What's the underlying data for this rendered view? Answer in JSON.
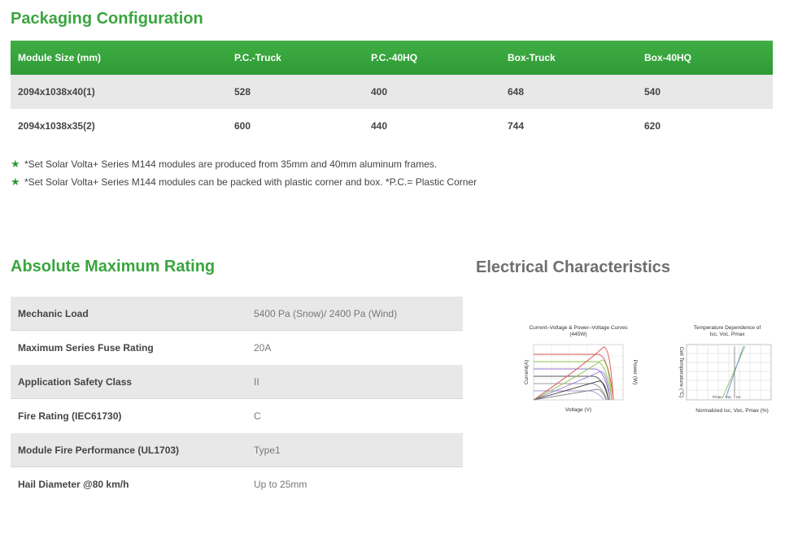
{
  "packaging": {
    "title": "Packaging Configuration",
    "headers": [
      "Module Size (mm)",
      "P.C.-Truck",
      "P.C.-40HQ",
      "Box-Truck",
      "Box-40HQ"
    ],
    "rows": [
      [
        "2094x1038x40(1)",
        "528",
        "400",
        "648",
        "540"
      ],
      [
        "2094x1038x35(2)",
        "600",
        "440",
        "744",
        "620"
      ]
    ],
    "notes": [
      "*Set Solar Volta+ Series M144 modules are produced from 35mm and 40mm aluminum frames.",
      "*Set Solar Volta+ Series M144 modules can be packed with plastic corner and box. *P.C.= Plastic Corner"
    ]
  },
  "rating": {
    "title": "Absolute Maximum Rating",
    "rows": [
      {
        "label": "Mechanic Load",
        "value": "5400 Pa (Snow)/ 2400 Pa (Wind)"
      },
      {
        "label": "Maximum Series Fuse Rating",
        "value": "20A"
      },
      {
        "label": "Application Safety Class",
        "value": "II"
      },
      {
        "label": "Fire Rating (IEC61730)",
        "value": "C"
      },
      {
        "label": "Module Fire Performance (UL1703)",
        "value": "Type1"
      },
      {
        "label": "Hail Diameter @80 km/h",
        "value": "Up to 25mm"
      }
    ]
  },
  "electrical": {
    "title": "Electrical Characteristics",
    "iv_chart": {
      "title_line1": "Current–Voltage & Power–Voltage Curves",
      "title_line2": "(445W)",
      "xlabel": "Voltage (V)",
      "ylabel_left": "Current(A)",
      "ylabel_right": "Power (W)"
    },
    "temp_chart": {
      "title_line1": "Temperature Dependence of",
      "title_line2": "Isc, Voc, Pmax",
      "xlabel": "Normalized Isc, Voc, Pmax (%)",
      "ylabel": "Cell Temperature (°C)",
      "legend": [
        "Pmax",
        "Voc",
        "Isc"
      ]
    }
  },
  "colors": {
    "accent_green": "#3aa53f",
    "header_gray": "#6f6f6f",
    "row_shade": "#e8e8e8"
  }
}
